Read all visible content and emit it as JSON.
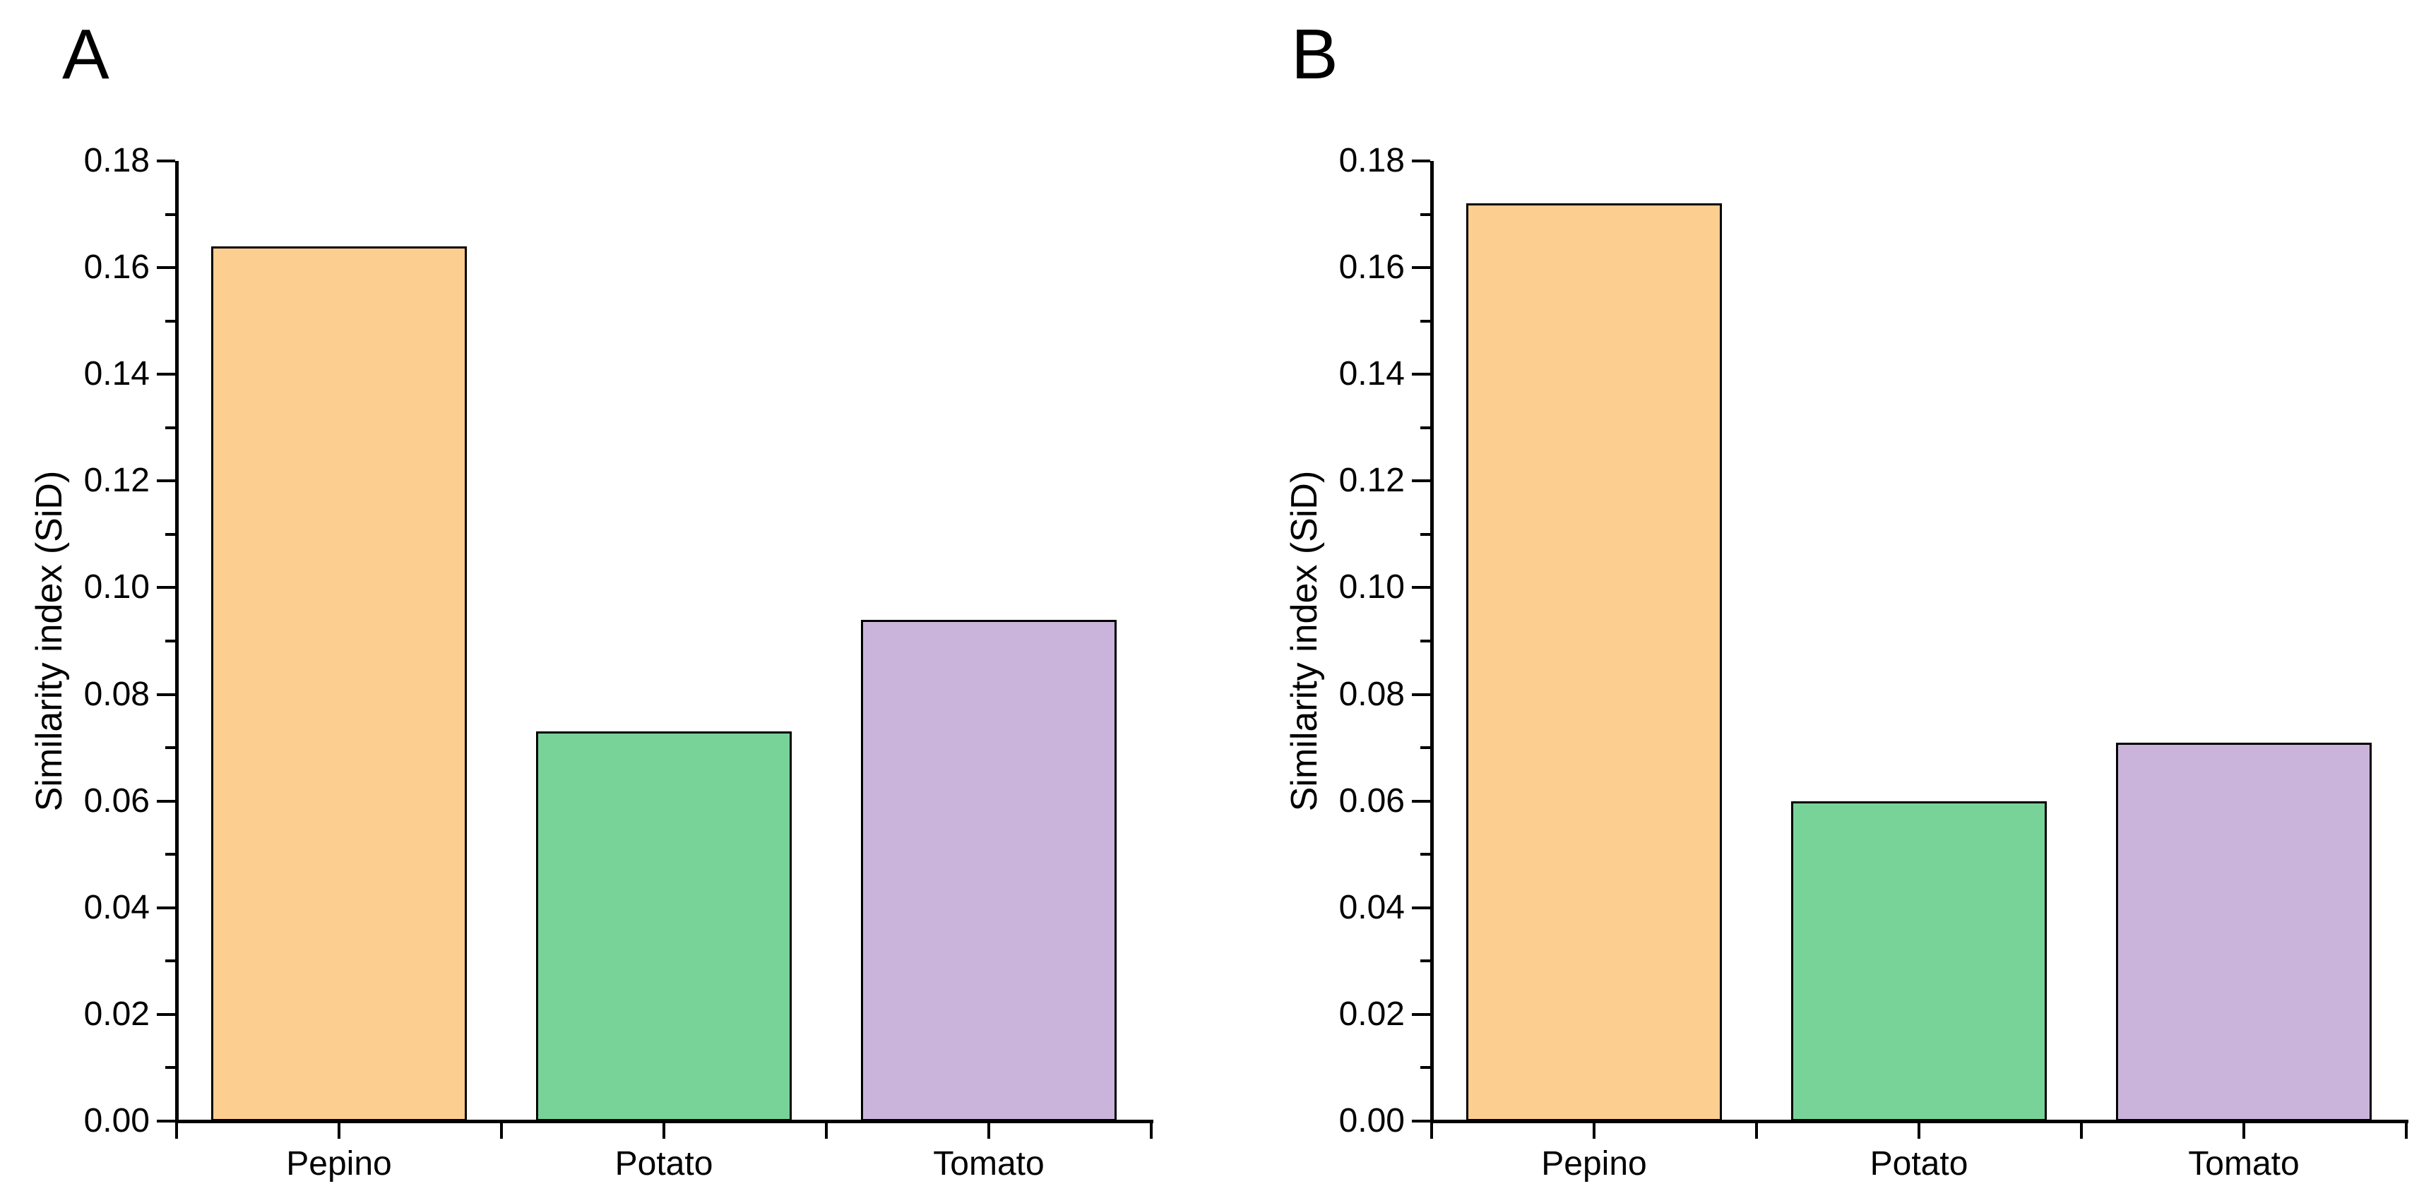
{
  "chart_data": [
    {
      "panel_label": "A",
      "type": "bar",
      "categories": [
        "Pepino",
        "Potato",
        "Tomato"
      ],
      "values": [
        0.164,
        0.073,
        0.094
      ],
      "bar_colors": [
        "#FCCE90",
        "#78D399",
        "#CBB4DB"
      ],
      "bar_edge_color": "#000000",
      "title": "",
      "xlabel": "",
      "ylabel": "Similarity index (SiD)",
      "ylim": [
        0,
        0.18
      ],
      "ytick_step": 0.02,
      "yminor_step": 0.01,
      "ytick_labels": [
        "0.00",
        "0.02",
        "0.04",
        "0.06",
        "0.08",
        "0.10",
        "0.12",
        "0.14",
        "0.16",
        "0.18"
      ],
      "grid": false,
      "legend": false
    },
    {
      "panel_label": "B",
      "type": "bar",
      "categories": [
        "Pepino",
        "Potato",
        "Tomato"
      ],
      "values": [
        0.172,
        0.06,
        0.071
      ],
      "bar_colors": [
        "#FCCE90",
        "#78D399",
        "#CBB4DB"
      ],
      "bar_edge_color": "#000000",
      "title": "",
      "xlabel": "",
      "ylabel": "Similarity index (SiD)",
      "ylim": [
        0,
        0.18
      ],
      "ytick_step": 0.02,
      "yminor_step": 0.01,
      "ytick_labels": [
        "0.00",
        "0.02",
        "0.04",
        "0.06",
        "0.08",
        "0.10",
        "0.12",
        "0.14",
        "0.16",
        "0.18"
      ],
      "grid": false,
      "legend": false
    }
  ]
}
